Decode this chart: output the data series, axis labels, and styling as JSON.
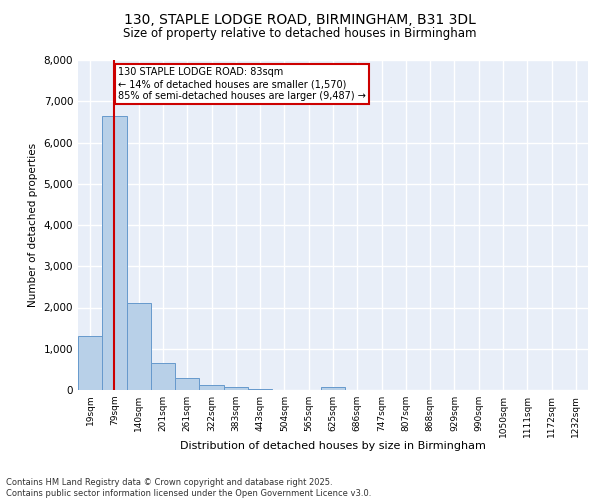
{
  "title_line1": "130, STAPLE LODGE ROAD, BIRMINGHAM, B31 3DL",
  "title_line2": "Size of property relative to detached houses in Birmingham",
  "xlabel": "Distribution of detached houses by size in Birmingham",
  "ylabel": "Number of detached properties",
  "categories": [
    "19sqm",
    "79sqm",
    "140sqm",
    "201sqm",
    "261sqm",
    "322sqm",
    "383sqm",
    "443sqm",
    "504sqm",
    "565sqm",
    "625sqm",
    "686sqm",
    "747sqm",
    "807sqm",
    "868sqm",
    "929sqm",
    "990sqm",
    "1050sqm",
    "1111sqm",
    "1172sqm",
    "1232sqm"
  ],
  "values": [
    1300,
    6650,
    2100,
    650,
    290,
    130,
    80,
    35,
    0,
    0,
    70,
    0,
    0,
    0,
    0,
    0,
    0,
    0,
    0,
    0,
    0
  ],
  "bar_color": "#b8d0e8",
  "bar_edge_color": "#6699cc",
  "vline_x_bar": 1,
  "vline_color": "#cc0000",
  "annotation_text": "130 STAPLE LODGE ROAD: 83sqm\n← 14% of detached houses are smaller (1,570)\n85% of semi-detached houses are larger (9,487) →",
  "annotation_box_color": "#cc0000",
  "ylim": [
    0,
    8000
  ],
  "yticks": [
    0,
    1000,
    2000,
    3000,
    4000,
    5000,
    6000,
    7000,
    8000
  ],
  "bg_color": "#e8eef8",
  "grid_color": "#ffffff",
  "fig_bg": "#ffffff",
  "footer": "Contains HM Land Registry data © Crown copyright and database right 2025.\nContains public sector information licensed under the Open Government Licence v3.0."
}
